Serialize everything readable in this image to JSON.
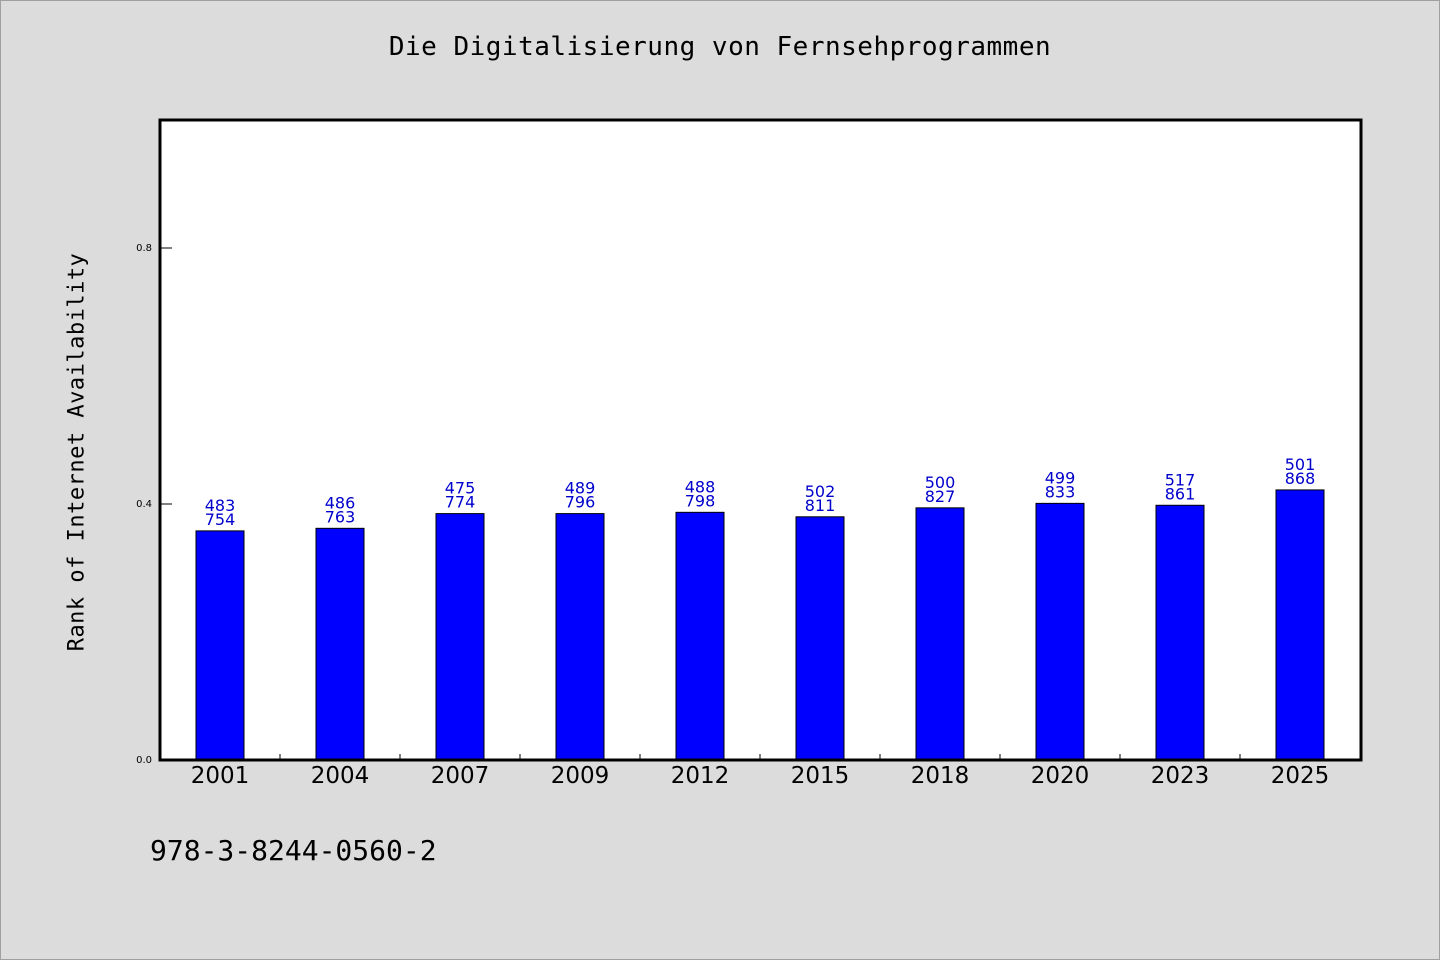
{
  "chart_data": {
    "type": "bar",
    "title": "Die Digitalisierung von Fernsehprogrammen",
    "xlabel": "",
    "ylabel": "Rank of Internet Availability",
    "categories": [
      "2001",
      "2004",
      "2007",
      "2009",
      "2012",
      "2015",
      "2018",
      "2020",
      "2023",
      "2025"
    ],
    "values": [
      0.358,
      0.362,
      0.385,
      0.385,
      0.387,
      0.38,
      0.394,
      0.401,
      0.398,
      0.422
    ],
    "data_labels_top": [
      "483",
      "486",
      "475",
      "489",
      "488",
      "502",
      "500",
      "499",
      "517",
      "501"
    ],
    "data_labels_bottom": [
      "754",
      "763",
      "774",
      "796",
      "798",
      "811",
      "827",
      "833",
      "861",
      "868"
    ],
    "ylim": [
      0,
      1.0
    ],
    "yticks": [
      0.0,
      0.4,
      0.8
    ],
    "ytick_labels": [
      "0.0",
      "0.4",
      "0.8"
    ],
    "grid": false,
    "legend": "none",
    "colors": {
      "bar": "#0000ff",
      "label": "#0000cc",
      "background": "#dcdcdc",
      "plot_background": "#ffffff"
    }
  },
  "footer": {
    "isbn": "978-3-8244-0560-2"
  }
}
